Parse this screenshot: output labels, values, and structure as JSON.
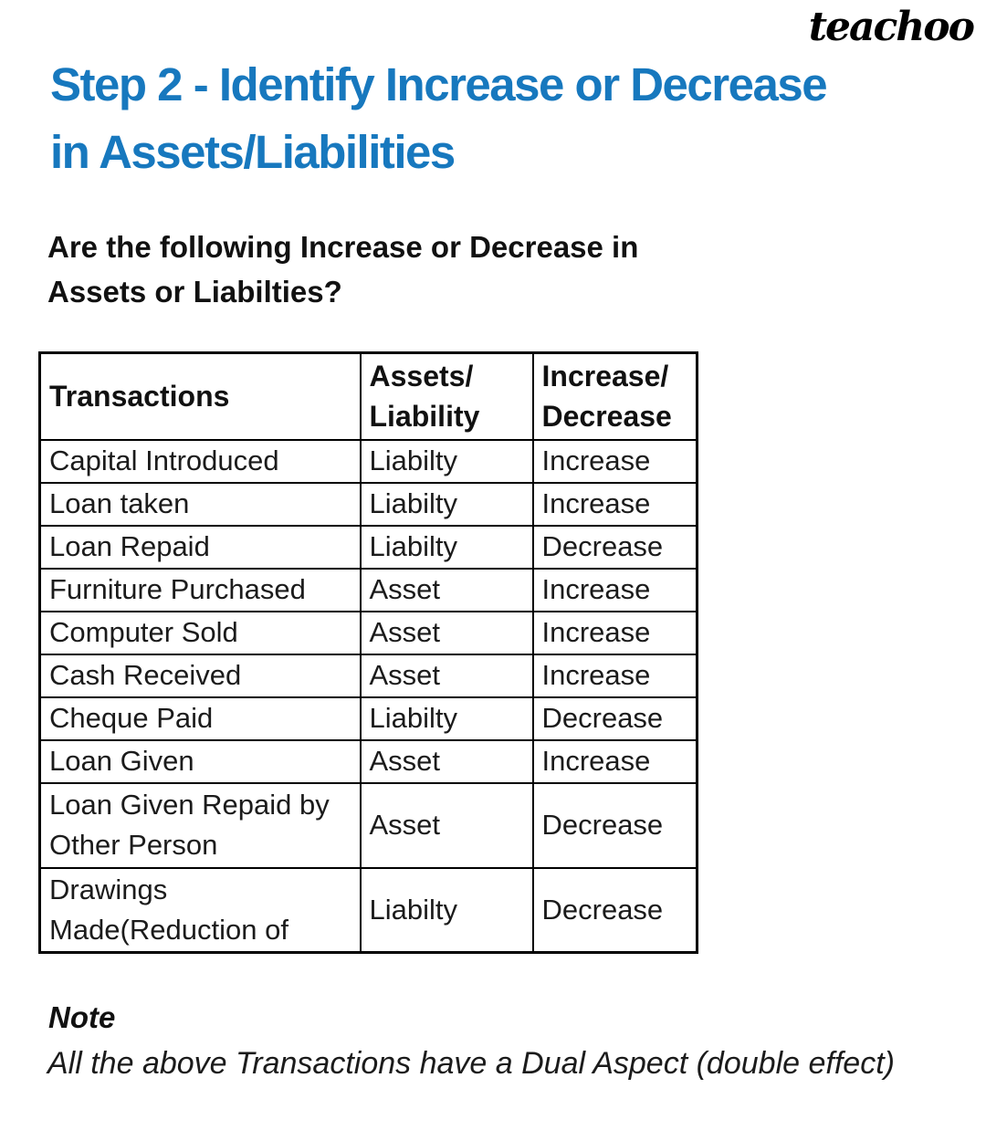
{
  "logo": {
    "text": "teachoo"
  },
  "title": {
    "line1": "Step 2 - Identify Increase or Decrease",
    "line2": "in Assets/Liabilities",
    "color": "#1778be"
  },
  "subtitle": {
    "line1": "Are the following Increase or Decrease in",
    "line2": "Assets or Liabilties?"
  },
  "table": {
    "headers": [
      "Transactions",
      "Assets/\nLiability",
      "Increase/\nDecrease"
    ],
    "rows": [
      {
        "transaction": "Capital Introduced",
        "assets_liability": "Liabilty",
        "increase_decrease": "Increase"
      },
      {
        "transaction": "Loan taken",
        "assets_liability": "Liabilty",
        "increase_decrease": "Increase"
      },
      {
        "transaction": "Loan Repaid",
        "assets_liability": "Liabilty",
        "increase_decrease": "Decrease"
      },
      {
        "transaction": "Furniture Purchased",
        "assets_liability": "Asset",
        "increase_decrease": "Increase"
      },
      {
        "transaction": "Computer Sold",
        "assets_liability": "Asset",
        "increase_decrease": "Increase"
      },
      {
        "transaction": "Cash Received",
        "assets_liability": "Asset",
        "increase_decrease": "Increase"
      },
      {
        "transaction": "Cheque Paid",
        "assets_liability": "Liabilty",
        "increase_decrease": "Decrease"
      },
      {
        "transaction": "Loan Given",
        "assets_liability": "Asset",
        "increase_decrease": "Increase"
      },
      {
        "transaction": "Loan Given Repaid by\nOther Person",
        "assets_liability": "Asset",
        "increase_decrease": "Decrease"
      },
      {
        "transaction": "Drawings\nMade(Reduction of",
        "assets_liability": "Liabilty",
        "increase_decrease": "Decrease"
      }
    ]
  },
  "note": {
    "heading": "Note",
    "text": "All the above Transactions have a Dual Aspect (double effect)"
  }
}
